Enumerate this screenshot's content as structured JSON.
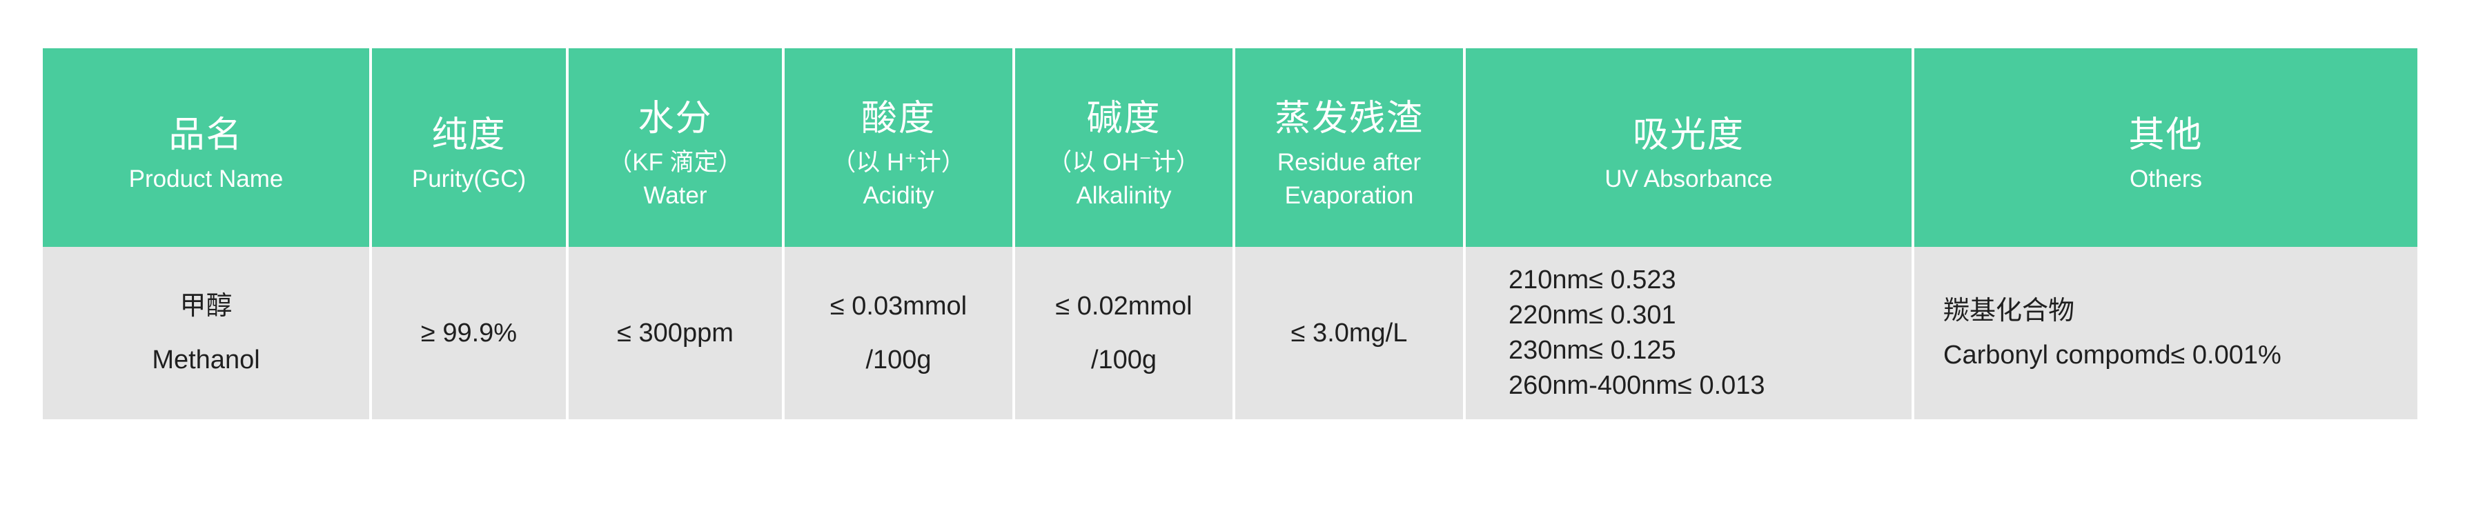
{
  "colors": {
    "page_bg": "#ffffff",
    "header_bg": "#49cc9d",
    "header_text": "#ffffff",
    "row_bg": "#e4e4e4",
    "body_text": "#1f1f1f",
    "divider": "#ffffff"
  },
  "chart_data": {
    "type": "table",
    "columns": [
      {
        "key": "product_name",
        "lines": [
          "品名",
          "Product Name"
        ]
      },
      {
        "key": "purity",
        "lines": [
          "纯度",
          "Purity(GC)"
        ]
      },
      {
        "key": "water",
        "lines": [
          "水分",
          "（KF 滴定）",
          "Water"
        ]
      },
      {
        "key": "acidity",
        "lines": [
          "酸度",
          "（以 H⁺计）",
          "Acidity"
        ]
      },
      {
        "key": "alkalinity",
        "lines": [
          "碱度",
          "（以 OH⁻计）",
          "Alkalinity"
        ]
      },
      {
        "key": "residue_after_evaporation",
        "lines": [
          "蒸发残渣",
          "Residue after",
          "Evaporation"
        ]
      },
      {
        "key": "uv_absorbance",
        "lines": [
          "吸光度",
          "UV Absorbance"
        ]
      },
      {
        "key": "others",
        "lines": [
          "其他",
          "Others"
        ]
      }
    ],
    "row": {
      "product_name": [
        "甲醇",
        "Methanol"
      ],
      "purity": "≥ 99.9%",
      "water": "≤ 300ppm",
      "acidity": [
        "≤ 0.03mmol",
        "/100g"
      ],
      "alkalinity": [
        "≤ 0.02mmol",
        "/100g"
      ],
      "residue_after_evaporation": "≤ 3.0mg/L",
      "uv_absorbance": [
        "210nm≤ 0.523",
        "220nm≤ 0.301",
        "230nm≤ 0.125",
        "260nm-400nm≤ 0.013"
      ],
      "others": [
        "羰基化合物",
        "Carbonyl compomd≤ 0.001%"
      ]
    }
  }
}
